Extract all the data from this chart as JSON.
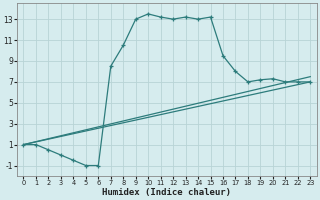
{
  "xlabel": "Humidex (Indice chaleur)",
  "bg_color": "#d6ecee",
  "grid_color": "#b8d4d6",
  "line_color": "#2d7c7c",
  "xlim": [
    -0.5,
    23.5
  ],
  "ylim": [
    -2.0,
    14.5
  ],
  "xticks": [
    0,
    1,
    2,
    3,
    4,
    5,
    6,
    7,
    8,
    9,
    10,
    11,
    12,
    13,
    14,
    15,
    16,
    17,
    18,
    19,
    20,
    21,
    22,
    23
  ],
  "yticks": [
    -1,
    1,
    3,
    5,
    7,
    9,
    11,
    13
  ],
  "series_main": {
    "x": [
      0,
      1,
      2,
      3,
      4,
      5,
      6,
      7,
      8,
      9,
      10,
      11,
      12,
      13,
      14,
      15,
      16,
      17,
      18,
      19,
      20,
      21,
      22,
      23
    ],
    "y": [
      1,
      1,
      0.5,
      0,
      -0.5,
      -1,
      -1,
      8.5,
      10.5,
      13,
      13.5,
      13.2,
      13.0,
      13.2,
      13.0,
      13.2,
      9.5,
      8,
      7,
      7.2,
      7.3,
      7,
      7,
      7
    ]
  },
  "line1": {
    "x": [
      0,
      23
    ],
    "y": [
      1,
      7.5
    ]
  },
  "line2": {
    "x": [
      0,
      23
    ],
    "y": [
      1,
      7.0
    ]
  }
}
